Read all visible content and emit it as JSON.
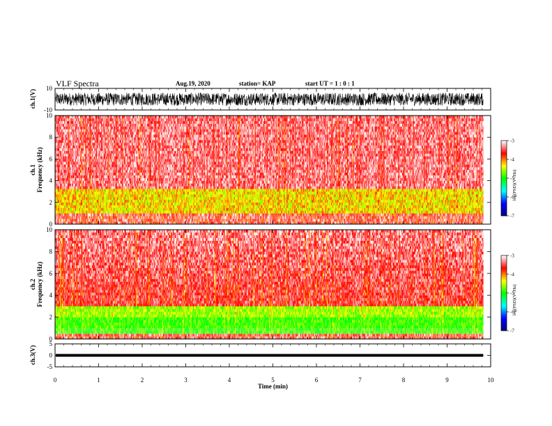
{
  "header": {
    "title": "VLF Spectra",
    "date": "Aug.19, 2020",
    "station": "station= KAP",
    "start": "start  UT =   1 : 0  : 1"
  },
  "chart_data": [
    {
      "type": "line",
      "panel": "ch1-waveform",
      "ylabel": "ch.1(V)",
      "ylim": [
        -10,
        10
      ],
      "yticks": [
        10,
        -10
      ],
      "x_range_min": [
        0,
        9.83
      ],
      "values_note_free": true,
      "amplitude_range": [
        -6,
        6
      ]
    },
    {
      "type": "heatmap",
      "panel": "ch1-spectrogram",
      "ylabel": "ch.1\nFrequency  (kHz)",
      "ylim": [
        0,
        10
      ],
      "yticks": [
        0,
        2,
        4,
        6,
        8,
        10
      ],
      "xlim": [
        0,
        10
      ],
      "data_end_min": 9.83,
      "colorbar": {
        "label": "log(PSD)(V²/Hz)",
        "range": [
          -7,
          -3
        ],
        "ticks": [
          -3,
          -4,
          -5,
          -6,
          -7
        ]
      }
    },
    {
      "type": "heatmap",
      "panel": "ch2-spectrogram",
      "ylabel": "ch.2\nFrequency  (kHz)",
      "ylim": [
        0,
        10
      ],
      "yticks": [
        0,
        2,
        4,
        6,
        8,
        10
      ],
      "xlim": [
        0,
        10
      ],
      "data_end_min": 9.83,
      "colorbar": {
        "label": "log(PSD)(V²/Hz)",
        "range": [
          -7,
          -3
        ],
        "ticks": [
          -3,
          -4,
          -5,
          -6,
          -7
        ]
      }
    },
    {
      "type": "line",
      "panel": "ch3-waveform",
      "ylabel": "ch.3(V)",
      "ylim": [
        -5,
        5
      ],
      "yticks": [
        5,
        0,
        -5
      ],
      "xlabel": "Time  (min)",
      "xlim": [
        0,
        10
      ],
      "xticks": [
        0,
        1,
        2,
        3,
        4,
        5,
        6,
        7,
        8,
        9,
        10
      ],
      "level_range": [
        -0.6,
        0.6
      ]
    }
  ],
  "colors": {
    "cmap": [
      "#000080",
      "#0000ff",
      "#00ffff",
      "#00ff00",
      "#ffff00",
      "#ff0000",
      "#ffffff"
    ],
    "axis": "#000000",
    "trace": "#000000"
  }
}
